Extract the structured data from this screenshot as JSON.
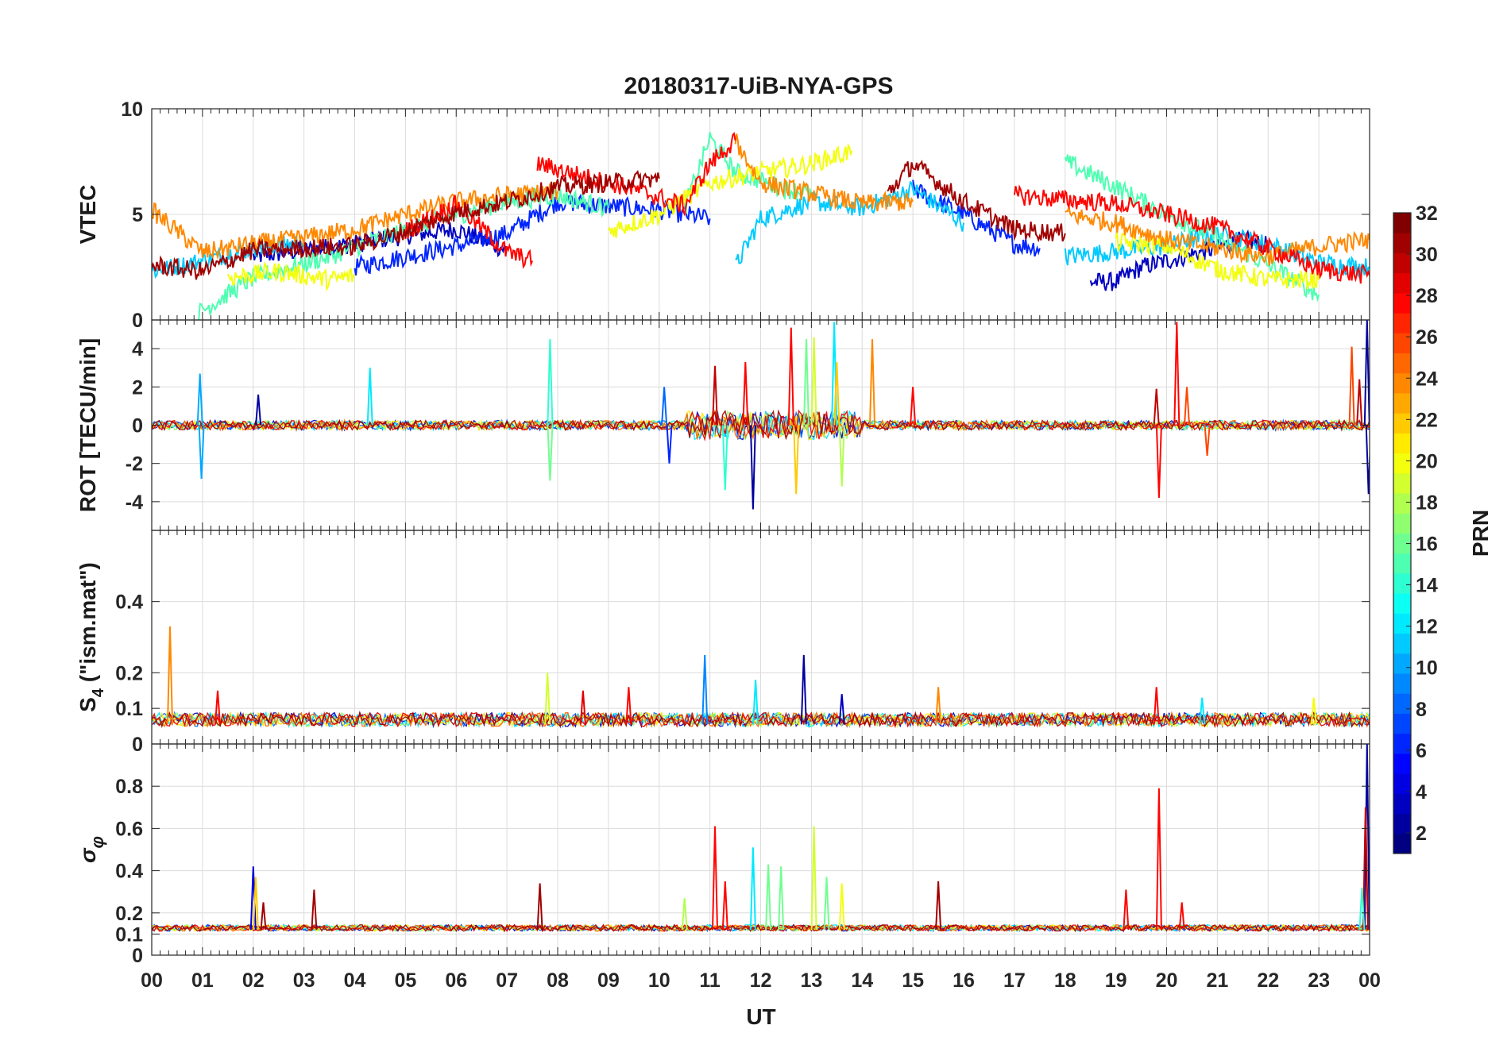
{
  "chart_data": {
    "type": "line",
    "title": "20180317-UiB-NYA-GPS",
    "xlabel": "UT",
    "x_tick_labels": [
      "00",
      "01",
      "02",
      "03",
      "04",
      "05",
      "06",
      "07",
      "08",
      "09",
      "10",
      "11",
      "12",
      "13",
      "14",
      "15",
      "16",
      "17",
      "18",
      "19",
      "20",
      "21",
      "22",
      "23",
      "00"
    ],
    "x_range_hours": [
      0,
      24
    ],
    "colorbar": {
      "label": "PRN",
      "range": [
        1,
        32
      ],
      "tick_values": [
        2,
        4,
        6,
        8,
        10,
        12,
        14,
        16,
        18,
        20,
        22,
        24,
        26,
        28,
        30,
        32
      ],
      "tick_labels": [
        "2",
        "4",
        "6",
        "8",
        "10",
        "12",
        "14",
        "16",
        "18",
        "20",
        "22",
        "24",
        "26",
        "28",
        "30",
        "32"
      ],
      "colormap": "jet",
      "levels": 32
    },
    "panels": [
      {
        "id": "vtec",
        "ylabel": "VTEC",
        "ylim": [
          0,
          10
        ],
        "y_tick_values": [
          0,
          5,
          10
        ],
        "y_tick_labels": [
          "0",
          "5",
          "10"
        ],
        "series": [
          {
            "prn": 3,
            "segments": [
              {
                "x": [
                  2.0,
                  3.0,
                  4.0,
                  5.0,
                  6.0,
                  7.0
                ],
                "y": [
                  3.0,
                  3.3,
                  3.6,
                  4.0,
                  4.3,
                  3.3
                ]
              },
              {
                "x": [
                  18.5,
                  19.0,
                  19.5,
                  20.0,
                  20.5,
                  21.0,
                  21.5,
                  22.0
                ],
                "y": [
                  1.8,
                  1.8,
                  2.5,
                  2.8,
                  3.1,
                  3.4,
                  3.8,
                  3.5
                ]
              }
            ]
          },
          {
            "prn": 6,
            "segments": [
              {
                "x": [
                  4.0,
                  5.0,
                  6.0,
                  7.0,
                  8.0,
                  9.0,
                  10.0,
                  11.0
                ],
                "y": [
                  2.5,
                  3.0,
                  3.5,
                  4.1,
                  5.6,
                  5.4,
                  5.2,
                  4.8
                ]
              },
              {
                "x": [
                  15.0,
                  16.0,
                  17.0,
                  17.5
                ],
                "y": [
                  6.2,
                  5.0,
                  3.6,
                  3.4
                ]
              }
            ]
          },
          {
            "prn": 11,
            "segments": [
              {
                "x": [
                  0.0,
                  1.0,
                  2.0,
                  3.0
                ],
                "y": [
                  2.3,
                  2.8,
                  3.4,
                  3.7
                ]
              },
              {
                "x": [
                  11.5,
                  12.0,
                  13.0,
                  14.0,
                  15.0,
                  16.0
                ],
                "y": [
                  2.5,
                  4.8,
                  5.6,
                  5.3,
                  6.2,
                  4.6
                ]
              },
              {
                "x": [
                  18.0,
                  20.0,
                  21.0,
                  22.0,
                  23.0,
                  24.0
                ],
                "y": [
                  3.0,
                  3.5,
                  4.1,
                  3.6,
                  2.7,
                  2.5
                ]
              }
            ]
          },
          {
            "prn": 15,
            "segments": [
              {
                "x": [
                  0.9,
                  2.0,
                  3.5,
                  5.0,
                  7.0,
                  8.0,
                  9.0
                ],
                "y": [
                  0.3,
                  2.0,
                  3.0,
                  4.3,
                  5.6,
                  5.9,
                  5.3
                ]
              },
              {
                "x": [
                  10.5,
                  11.0,
                  11.5,
                  12.5,
                  13.0
                ],
                "y": [
                  5.3,
                  8.6,
                  7.0,
                  6.2,
                  6.0
                ]
              },
              {
                "x": [
                  18.0,
                  19.0,
                  20.0,
                  21.0,
                  22.0,
                  23.0
                ],
                "y": [
                  7.5,
                  6.3,
                  5.0,
                  3.9,
                  2.6,
                  1.2
                ]
              }
            ]
          },
          {
            "prn": 20,
            "segments": [
              {
                "x": [
                  1.5,
                  2.5,
                  3.5,
                  4.0
                ],
                "y": [
                  2.0,
                  2.3,
                  1.9,
                  2.1
                ]
              },
              {
                "x": [
                  9.0,
                  10.0,
                  11.0,
                  12.0,
                  13.0,
                  13.8
                ],
                "y": [
                  4.2,
                  5.0,
                  6.5,
                  7.0,
                  7.4,
                  8.0
                ]
              },
              {
                "x": [
                  19.0,
                  20.0,
                  21.0,
                  22.0,
                  23.0
                ],
                "y": [
                  3.7,
                  3.5,
                  2.4,
                  1.9,
                  1.9
                ]
              }
            ]
          },
          {
            "prn": 24,
            "segments": [
              {
                "x": [
                  0.0,
                  1.0,
                  2.0,
                  3.0,
                  4.0,
                  5.0,
                  6.0,
                  7.0,
                  8.0
                ],
                "y": [
                  5.2,
                  3.2,
                  3.6,
                  3.9,
                  4.3,
                  5.0,
                  5.6,
                  5.9,
                  6.1
                ]
              },
              {
                "x": [
                  11.5,
                  12.0,
                  13.0,
                  14.0,
                  15.0
                ],
                "y": [
                  8.5,
                  6.5,
                  6.0,
                  5.5,
                  5.6
                ]
              },
              {
                "x": [
                  18.0,
                  19.0,
                  20.0,
                  21.0,
                  22.0,
                  23.0,
                  24.0
                ],
                "y": [
                  5.0,
                  4.6,
                  3.8,
                  3.4,
                  3.0,
                  3.5,
                  3.8
                ]
              }
            ]
          },
          {
            "prn": 28,
            "segments": [
              {
                "x": [
                  5.0,
                  6.0,
                  7.0,
                  7.5
                ],
                "y": [
                  4.2,
                  5.5,
                  3.2,
                  2.8
                ]
              },
              {
                "x": [
                  7.6,
                  8.5,
                  9.5,
                  10.5,
                  11.0,
                  11.5
                ],
                "y": [
                  7.4,
                  6.8,
                  6.2,
                  5.4,
                  7.4,
                  8.5
                ]
              },
              {
                "x": [
                  17.0,
                  18.0,
                  19.0,
                  20.0,
                  21.0,
                  22.0,
                  23.0,
                  24.0
                ],
                "y": [
                  5.9,
                  5.7,
                  5.5,
                  5.0,
                  4.4,
                  3.4,
                  2.4,
                  2.1
                ]
              }
            ]
          },
          {
            "prn": 31,
            "segments": [
              {
                "x": [
                  0.0,
                  1.0,
                  2.0,
                  3.0,
                  4.0,
                  5.0,
                  6.0,
                  7.0,
                  8.0,
                  9.0,
                  10.0
                ],
                "y": [
                  2.6,
                  2.3,
                  3.3,
                  3.4,
                  3.5,
                  4.2,
                  5.1,
                  5.6,
                  6.3,
                  6.5,
                  6.7
                ]
              },
              {
                "x": [
                  14.5,
                  15.0,
                  16.0,
                  17.0,
                  18.0
                ],
                "y": [
                  6.0,
                  7.4,
                  5.6,
                  4.3,
                  4.1
                ]
              }
            ]
          }
        ]
      },
      {
        "id": "rot",
        "ylabel": "ROT [TECU/min]",
        "ylim": [
          -5.5,
          5.5
        ],
        "y_tick_values": [
          -4,
          -2,
          0,
          2,
          4
        ],
        "y_tick_labels": [
          "-4",
          "-2",
          "0",
          "2",
          "4"
        ],
        "baseline": 0,
        "spikes": [
          {
            "prn": 10,
            "x": 0.95,
            "y": 2.7
          },
          {
            "prn": 10,
            "x": 0.98,
            "y": -2.8
          },
          {
            "prn": 2,
            "x": 2.1,
            "y": 1.6
          },
          {
            "prn": 12,
            "x": 4.3,
            "y": 3.0
          },
          {
            "prn": 14,
            "x": 7.85,
            "y": 4.5
          },
          {
            "prn": 16,
            "x": 7.85,
            "y": -2.9
          },
          {
            "prn": 8,
            "x": 10.1,
            "y": 2.0
          },
          {
            "prn": 6,
            "x": 10.2,
            "y": -2.0
          },
          {
            "prn": 30,
            "x": 11.1,
            "y": 3.1
          },
          {
            "prn": 14,
            "x": 11.3,
            "y": -3.4
          },
          {
            "prn": 28,
            "x": 11.7,
            "y": 3.3
          },
          {
            "prn": 2,
            "x": 11.85,
            "y": -4.4
          },
          {
            "prn": 28,
            "x": 12.6,
            "y": 5.1
          },
          {
            "prn": 22,
            "x": 12.7,
            "y": -3.6
          },
          {
            "prn": 16,
            "x": 12.9,
            "y": 4.5
          },
          {
            "prn": 19,
            "x": 13.05,
            "y": 4.6
          },
          {
            "prn": 12,
            "x": 13.45,
            "y": 5.4
          },
          {
            "prn": 18,
            "x": 13.6,
            "y": -3.2
          },
          {
            "prn": 22,
            "x": 13.5,
            "y": 3.3
          },
          {
            "prn": 24,
            "x": 14.2,
            "y": 4.5
          },
          {
            "prn": 28,
            "x": 15.0,
            "y": 2.0
          },
          {
            "prn": 30,
            "x": 19.8,
            "y": 1.9
          },
          {
            "prn": 28,
            "x": 19.85,
            "y": -3.8
          },
          {
            "prn": 28,
            "x": 20.2,
            "y": 5.4
          },
          {
            "prn": 26,
            "x": 20.4,
            "y": 2.0
          },
          {
            "prn": 26,
            "x": 20.8,
            "y": -1.6
          },
          {
            "prn": 26,
            "x": 23.65,
            "y": 4.1
          },
          {
            "prn": 30,
            "x": 23.8,
            "y": 2.4
          },
          {
            "prn": 2,
            "x": 23.95,
            "y": 5.5
          },
          {
            "prn": 2,
            "x": 23.98,
            "y": -3.6
          }
        ]
      },
      {
        "id": "s4",
        "ylabel": "S4 (\"ism.mat\")",
        "ylabel_sub": "4",
        "ylim": [
          0,
          0.6
        ],
        "y_tick_values": [
          0,
          0.1,
          0.2,
          0.4
        ],
        "y_tick_labels": [
          "0",
          "0.1",
          "0.2",
          "0.4"
        ],
        "baseline": 0.055,
        "spikes": [
          {
            "prn": 24,
            "x": 0.36,
            "y": 0.33
          },
          {
            "prn": 28,
            "x": 1.3,
            "y": 0.15
          },
          {
            "prn": 19,
            "x": 7.8,
            "y": 0.2
          },
          {
            "prn": 29,
            "x": 8.5,
            "y": 0.15
          },
          {
            "prn": 28,
            "x": 9.4,
            "y": 0.16
          },
          {
            "prn": 9,
            "x": 10.9,
            "y": 0.25
          },
          {
            "prn": 12,
            "x": 11.9,
            "y": 0.18
          },
          {
            "prn": 2,
            "x": 12.85,
            "y": 0.25
          },
          {
            "prn": 3,
            "x": 13.6,
            "y": 0.14
          },
          {
            "prn": 24,
            "x": 15.5,
            "y": 0.16
          },
          {
            "prn": 28,
            "x": 19.8,
            "y": 0.16
          },
          {
            "prn": 12,
            "x": 20.7,
            "y": 0.13
          },
          {
            "prn": 20,
            "x": 22.9,
            "y": 0.13
          }
        ]
      },
      {
        "id": "sigma_phi",
        "ylabel": "σφ",
        "ylim": [
          0,
          1.0
        ],
        "y_tick_values": [
          0,
          0.1,
          0.2,
          0.4,
          0.6,
          0.8
        ],
        "y_tick_labels": [
          "0",
          "0.1",
          "0.2",
          "0.4",
          "0.6",
          "0.8"
        ],
        "baseline": 0.12,
        "spikes": [
          {
            "prn": 4,
            "x": 2.0,
            "y": 0.42
          },
          {
            "prn": 22,
            "x": 2.05,
            "y": 0.37
          },
          {
            "prn": 31,
            "x": 2.2,
            "y": 0.25
          },
          {
            "prn": 31,
            "x": 3.2,
            "y": 0.31
          },
          {
            "prn": 31,
            "x": 7.65,
            "y": 0.34
          },
          {
            "prn": 18,
            "x": 10.5,
            "y": 0.27
          },
          {
            "prn": 28,
            "x": 11.1,
            "y": 0.61
          },
          {
            "prn": 28,
            "x": 11.3,
            "y": 0.35
          },
          {
            "prn": 12,
            "x": 11.85,
            "y": 0.51
          },
          {
            "prn": 16,
            "x": 12.15,
            "y": 0.43
          },
          {
            "prn": 16,
            "x": 12.4,
            "y": 0.42
          },
          {
            "prn": 19,
            "x": 13.05,
            "y": 0.61
          },
          {
            "prn": 16,
            "x": 13.3,
            "y": 0.37
          },
          {
            "prn": 20,
            "x": 13.6,
            "y": 0.34
          },
          {
            "prn": 31,
            "x": 15.5,
            "y": 0.35
          },
          {
            "prn": 28,
            "x": 19.2,
            "y": 0.31
          },
          {
            "prn": 28,
            "x": 19.85,
            "y": 0.79
          },
          {
            "prn": 28,
            "x": 20.3,
            "y": 0.25
          },
          {
            "prn": 2,
            "x": 23.95,
            "y": 1.0
          },
          {
            "prn": 30,
            "x": 23.92,
            "y": 0.7
          },
          {
            "prn": 14,
            "x": 23.85,
            "y": 0.32
          }
        ]
      }
    ]
  }
}
